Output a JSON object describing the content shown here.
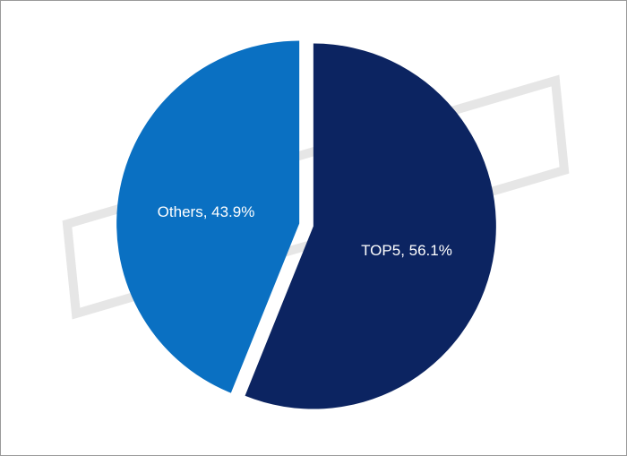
{
  "chart_data": {
    "type": "pie",
    "labels": [
      "TOP5, 56.1%",
      "Others, 43.9%"
    ],
    "values": [
      56.1,
      43.9
    ],
    "colors": [
      "#0c2461",
      "#0a70c2"
    ]
  }
}
